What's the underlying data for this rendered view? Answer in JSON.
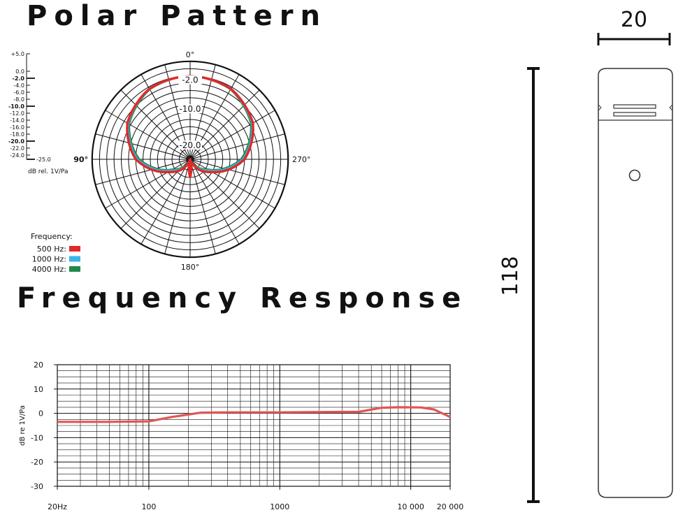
{
  "titles": {
    "polar": "Polar Pattern",
    "frequency": "Frequency Response"
  },
  "chart_data": [
    {
      "type": "polar",
      "title": "Polar Pattern",
      "angle_labels": [
        "0°",
        "90°",
        "180°",
        "270°"
      ],
      "ring_labels": [
        "-2.0",
        "-10.0",
        "-20.0"
      ],
      "db_scale": {
        "ticks": [
          "+5.0",
          "0.0",
          "-2.0",
          "-4.0",
          "-6.0",
          "-8.0",
          "-10.0",
          "-12.0",
          "-14.0",
          "-16.0",
          "-18.0",
          "-20.0",
          "-22.0",
          "-24.0",
          "-25.0"
        ],
        "bold_ticks": [
          "-2.0",
          "-10.0",
          "-20.0"
        ],
        "unit_label": "dB rel. 1V/Pa"
      },
      "legend_title": "Frequency:",
      "series": [
        {
          "name": "500 Hz:",
          "color": "#e02a2a",
          "angles": [
            0,
            30,
            60,
            90,
            120,
            150,
            165,
            180
          ],
          "values": [
            -2,
            -2.5,
            -5,
            -10,
            -18,
            -23,
            -25,
            -20
          ]
        },
        {
          "name": "1000 Hz:",
          "color": "#3bb6e8",
          "angles": [
            0,
            30,
            60,
            90,
            120,
            150,
            165,
            180
          ],
          "values": [
            -2,
            -2.6,
            -5.3,
            -10.5,
            -19,
            -23.5,
            -24.5,
            -20
          ]
        },
        {
          "name": "4000 Hz:",
          "color": "#1f8a4c",
          "angles": [
            0,
            30,
            60,
            90,
            120,
            150,
            165,
            180
          ],
          "values": [
            -2,
            -2.7,
            -5.6,
            -11,
            -19.5,
            -24,
            -24.8,
            -20
          ]
        }
      ]
    },
    {
      "type": "line",
      "title": "Frequency Response",
      "ylabel": "dB re 1V/Pa",
      "xscale": "log",
      "xlim": [
        20,
        20000
      ],
      "ylim": [
        -30,
        20
      ],
      "x_ticks": [
        20,
        100,
        1000,
        10000,
        20000
      ],
      "x_tick_labels": [
        "20Hz",
        "100",
        "1000",
        "10 000",
        "20 000"
      ],
      "y_ticks": [
        20,
        10,
        0,
        -10,
        -20,
        -30
      ],
      "y_tick_labels": [
        "20",
        "10",
        "0",
        "-10",
        "-20",
        "-30"
      ],
      "series": [
        {
          "color": "#e05555",
          "x": [
            20,
            50,
            100,
            150,
            250,
            400,
            1000,
            3000,
            4000,
            6000,
            8000,
            12000,
            15000,
            20000
          ],
          "y": [
            -3.5,
            -3.5,
            -3.3,
            -1.5,
            0.3,
            0.4,
            0.4,
            0.6,
            0.6,
            2.3,
            2.5,
            2.4,
            1.6,
            -1.5
          ]
        }
      ]
    }
  ],
  "drawing": {
    "width_label": "20",
    "length_label": "118"
  }
}
